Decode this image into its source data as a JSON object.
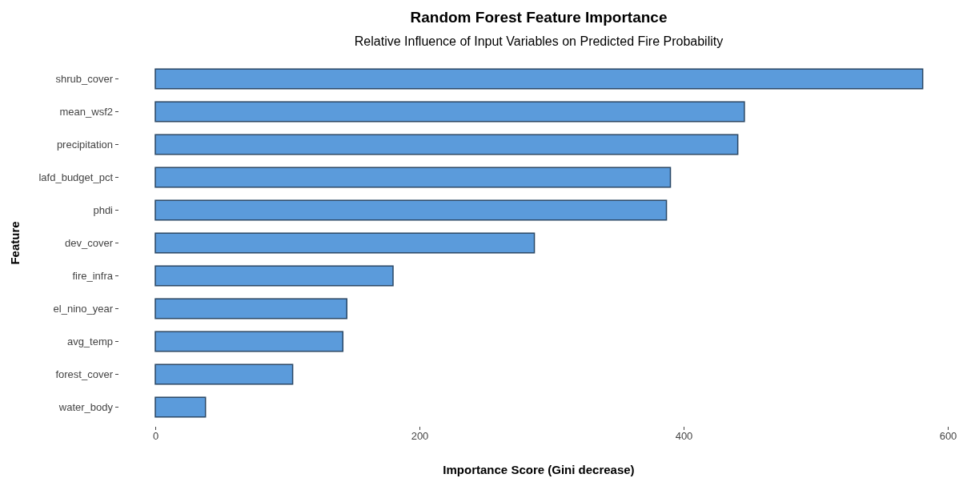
{
  "chart_data": {
    "type": "bar",
    "orientation": "horizontal",
    "title": "Random Forest Feature Importance",
    "subtitle": "Relative Influence of Input Variables on Predicted Fire Probability",
    "xlabel": "Importance Score (Gini decrease)",
    "ylabel": "Feature",
    "categories": [
      "shrub_cover",
      "mean_wsf2",
      "precipitation",
      "lafd_budget_pct",
      "phdi",
      "dev_cover",
      "fire_infra",
      "el_nino_year",
      "avg_temp",
      "forest_cover",
      "water_body"
    ],
    "values": [
      581,
      446,
      441,
      390,
      387,
      287,
      180,
      145,
      142,
      104,
      38
    ],
    "color": "#5b9bdb",
    "xlim": [
      0,
      600
    ],
    "xticks": [
      0,
      200,
      400,
      600
    ],
    "grid": false
  }
}
